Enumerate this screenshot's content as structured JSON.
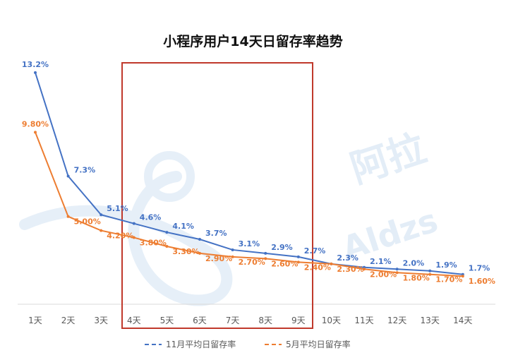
{
  "chart_data": {
    "type": "line",
    "title": "小程序用户14天日留存率趋势",
    "xlabel": "",
    "ylabel": "",
    "ylim": [
      0,
      14
    ],
    "grid": false,
    "legend": "bottom",
    "categories": [
      "1天",
      "2天",
      "3天",
      "4天",
      "5天",
      "6天",
      "7天",
      "8天",
      "9天",
      "10天",
      "11天",
      "12天",
      "13天",
      "14天"
    ],
    "series": [
      {
        "name": "11月平均日留存率",
        "color": "#4472c4",
        "values": [
          13.2,
          7.3,
          5.1,
          4.6,
          4.1,
          3.7,
          3.1,
          2.9,
          2.7,
          2.3,
          2.1,
          2.0,
          1.9,
          1.7
        ],
        "labels": [
          "13.2%",
          "7.3%",
          "5.1%",
          "4.6%",
          "4.1%",
          "3.7%",
          "3.1%",
          "2.9%",
          "2.7%",
          "2.3%",
          "2.1%",
          "2.0%",
          "1.9%",
          "1.7%"
        ]
      },
      {
        "name": "5月平均日留存率",
        "color": "#ed7d31",
        "values": [
          9.8,
          5.0,
          4.2,
          3.8,
          3.3,
          2.9,
          2.7,
          2.6,
          2.4,
          2.3,
          2.0,
          1.8,
          1.7,
          1.6
        ],
        "labels": [
          "9.80%",
          "5.00%",
          "4.20%",
          "3.80%",
          "3.30%",
          "2.90%",
          "2.70%",
          "2.60%",
          "2.40%",
          "2.30%",
          "2.00%",
          "1.80%",
          "1.70%",
          "1.60%"
        ]
      }
    ],
    "highlight": {
      "from": "4天",
      "to": "9天",
      "color": "#c0392b"
    }
  },
  "watermark": {
    "line1": "阿拉",
    "line2": "Aldzs"
  }
}
